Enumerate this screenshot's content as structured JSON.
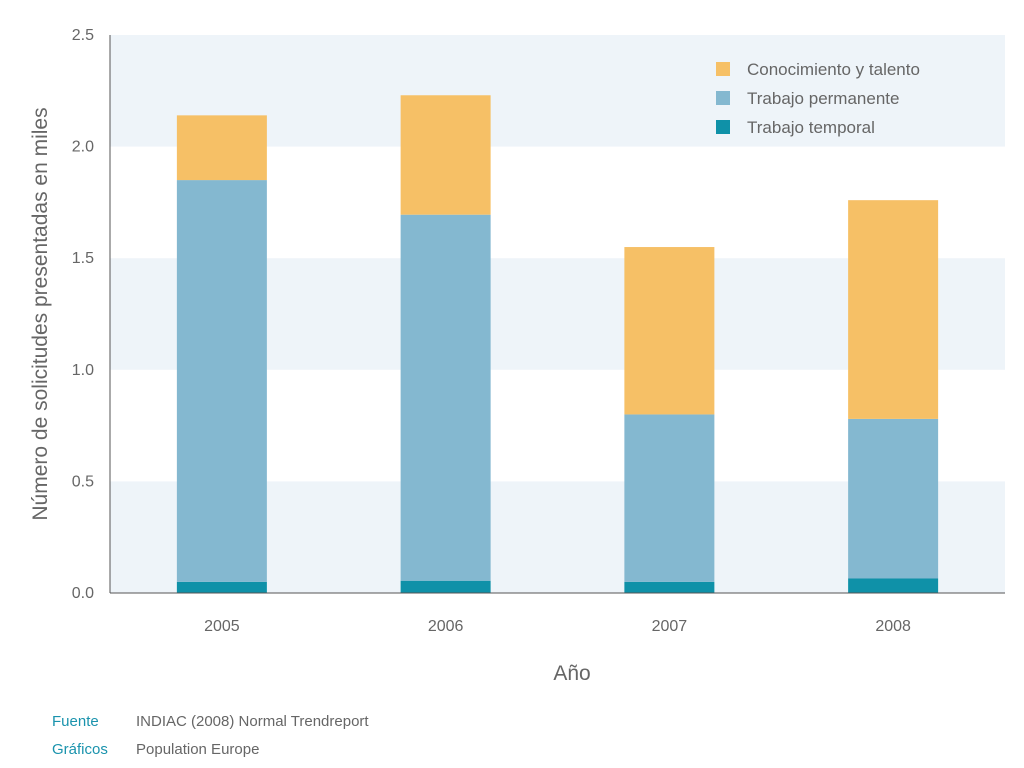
{
  "chart_data": {
    "type": "bar",
    "stacked": true,
    "categories": [
      "2005",
      "2006",
      "2007",
      "2008"
    ],
    "series": [
      {
        "name": "Trabajo temporal",
        "color": "#0f91a8",
        "values": [
          0.05,
          0.055,
          0.05,
          0.065
        ]
      },
      {
        "name": "Trabajo permanente",
        "color": "#84b8d0",
        "values": [
          1.8,
          1.64,
          0.75,
          0.715
        ]
      },
      {
        "name": "Conocimiento y talento",
        "color": "#f6c066",
        "values": [
          0.29,
          0.535,
          0.75,
          0.98
        ]
      }
    ],
    "xlabel": "Año",
    "ylabel": "Número de solicitudes presentadas en miles",
    "ylim": [
      0,
      2.5
    ],
    "yticks": [
      "0.0",
      "0.5",
      "1.0",
      "1.5",
      "2.0",
      "2.5"
    ],
    "legend_position": "top-right",
    "grid": "alternating horizontal bands"
  },
  "credits": [
    {
      "key": "Fuente",
      "value": "INDIAC (2008) Normal Trendreport"
    },
    {
      "key": "Gráficos",
      "value": "Population Europe"
    }
  ]
}
